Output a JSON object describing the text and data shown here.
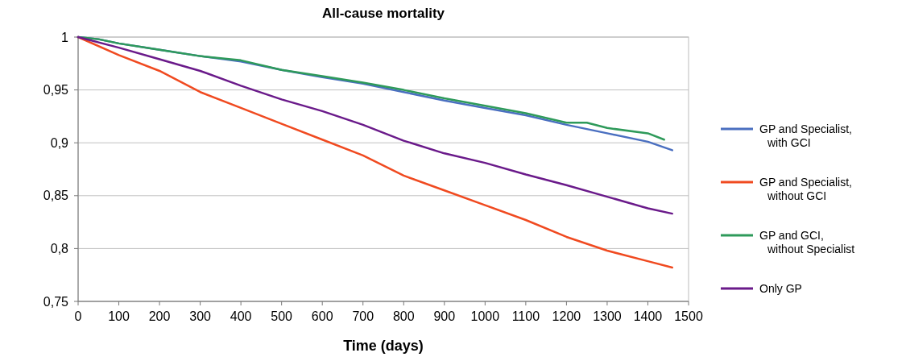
{
  "chart_data": {
    "type": "line",
    "title": "All-cause mortality",
    "xlabel": "Time (days)",
    "xlim": [
      0,
      1500
    ],
    "xticks": [
      0,
      100,
      200,
      300,
      400,
      500,
      600,
      700,
      800,
      900,
      1000,
      1100,
      1200,
      1300,
      1400,
      1500
    ],
    "ylim": [
      0.75,
      1
    ],
    "yticks": [
      {
        "value": 0.75,
        "label": "0,75"
      },
      {
        "value": 0.8,
        "label": "0,8"
      },
      {
        "value": 0.85,
        "label": "0,85"
      },
      {
        "value": 0.9,
        "label": "0,9"
      },
      {
        "value": 0.95,
        "label": "0,95"
      },
      1
    ],
    "grid": "y",
    "legend": "right",
    "marker": "none",
    "line_style": "solid",
    "series": [
      {
        "name": "GP and Specialist,\nwith GCI",
        "color": "#4a6fc0",
        "x": [
          0,
          50,
          100,
          200,
          300,
          400,
          500,
          600,
          700,
          800,
          900,
          1000,
          1100,
          1200,
          1300,
          1400,
          1460
        ],
        "values": [
          1,
          0.998,
          0.994,
          0.988,
          0.982,
          0.977,
          0.969,
          0.962,
          0.956,
          0.948,
          0.94,
          0.933,
          0.926,
          0.917,
          0.909,
          0.901,
          0.893
        ]
      },
      {
        "name": "GP and Specialist,\nwithout GCI",
        "color": "#f04a20",
        "x": [
          0,
          100,
          200,
          300,
          400,
          500,
          600,
          700,
          800,
          900,
          1000,
          1100,
          1200,
          1300,
          1400,
          1460
        ],
        "values": [
          1,
          0.983,
          0.968,
          0.948,
          0.933,
          0.918,
          0.903,
          0.888,
          0.869,
          0.855,
          0.841,
          0.827,
          0.811,
          0.798,
          0.788,
          0.782
        ]
      },
      {
        "name": "GP and GCI,\nwithout Specialist",
        "color": "#2e9a5a",
        "x": [
          0,
          50,
          100,
          200,
          300,
          400,
          500,
          600,
          700,
          800,
          900,
          1000,
          1100,
          1200,
          1250,
          1300,
          1400,
          1440
        ],
        "values": [
          1,
          0.998,
          0.994,
          0.988,
          0.982,
          0.978,
          0.969,
          0.963,
          0.957,
          0.95,
          0.942,
          0.935,
          0.928,
          0.919,
          0.919,
          0.914,
          0.909,
          0.903
        ]
      },
      {
        "name": "Only GP",
        "color": "#6a1a8a",
        "x": [
          0,
          100,
          200,
          300,
          400,
          500,
          600,
          700,
          800,
          900,
          1000,
          1100,
          1200,
          1300,
          1400,
          1460
        ],
        "values": [
          1,
          0.99,
          0.979,
          0.968,
          0.954,
          0.941,
          0.93,
          0.917,
          0.902,
          0.89,
          0.881,
          0.87,
          0.86,
          0.849,
          0.838,
          0.833
        ]
      }
    ]
  }
}
